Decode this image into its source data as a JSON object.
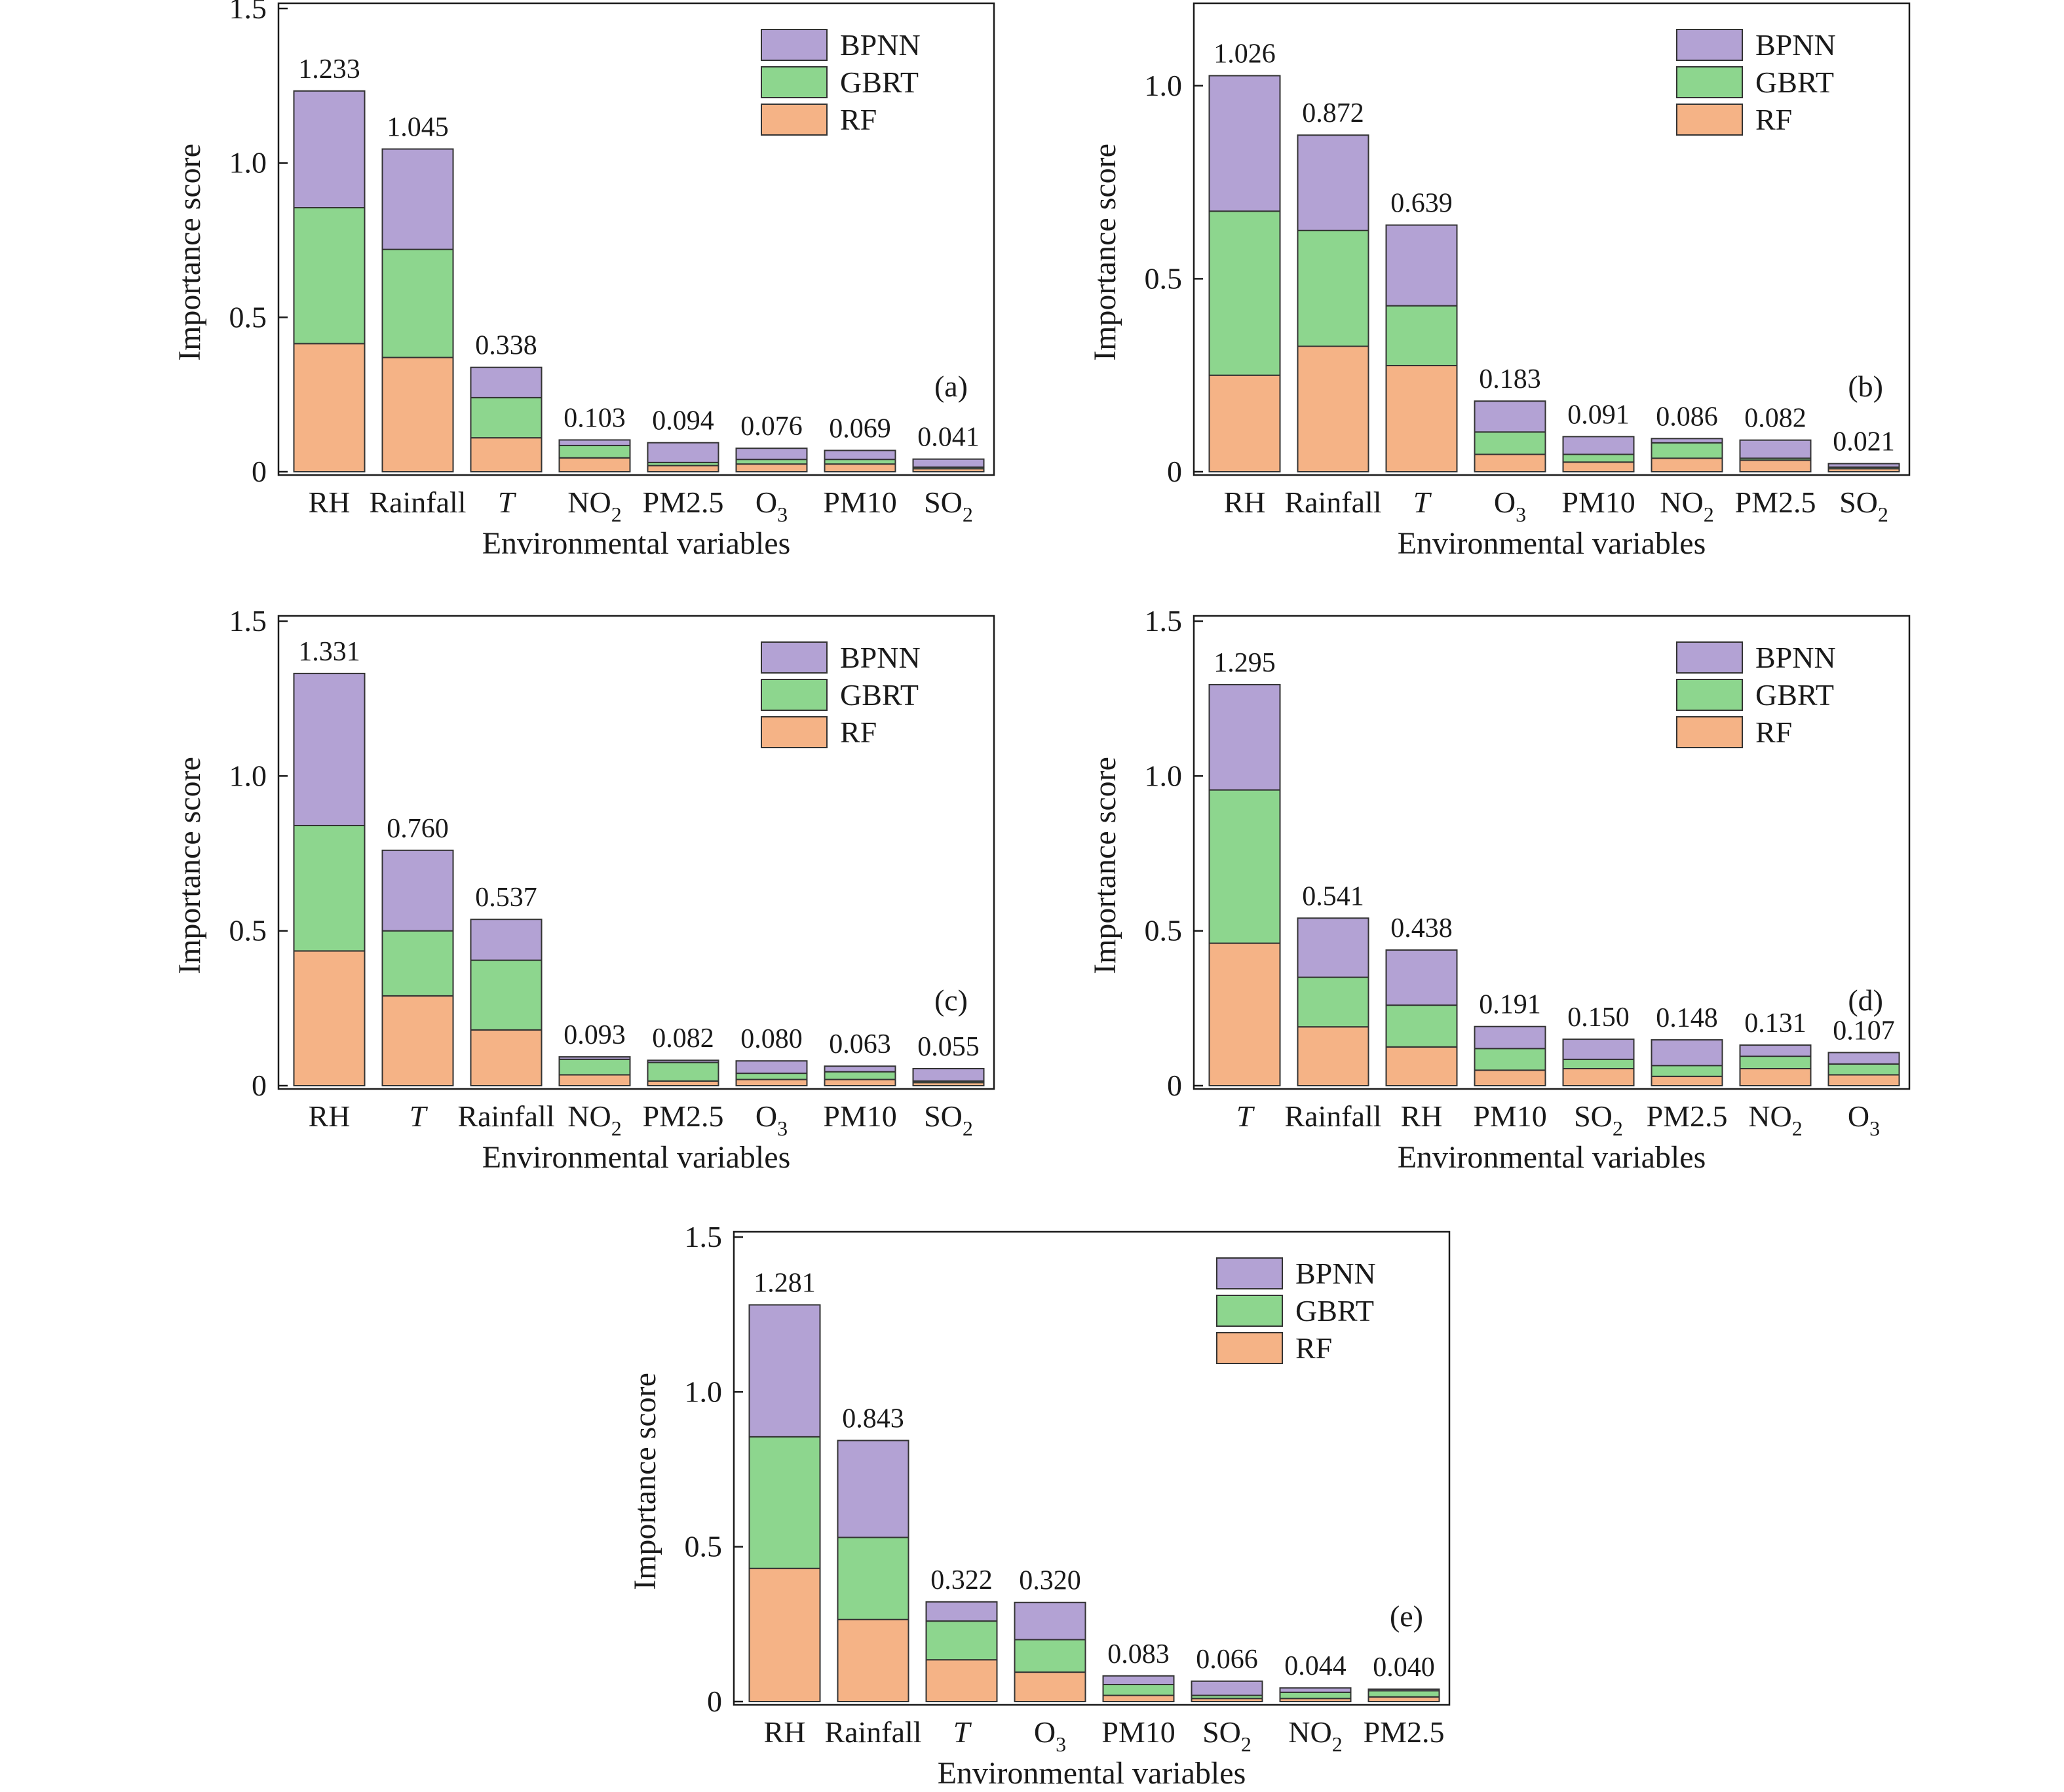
{
  "colors": {
    "RF": "#f5b386",
    "GBRT": "#8dd68e",
    "BPNN": "#b3a2d4"
  },
  "chart_data": [
    {
      "type": "bar",
      "stacked": true,
      "panel_label": "(a)",
      "xlabel": "Environmental variables",
      "ylabel": "Importance score",
      "ylim": [
        0,
        1.5
      ],
      "yticks": [
        "0",
        "0.5",
        "1.0",
        "1.5"
      ],
      "ytick_values": [
        0,
        0.5,
        1.0,
        1.5
      ],
      "legend": [
        "BPNN",
        "GBRT",
        "RF"
      ],
      "legend_position": "top-right",
      "categories": [
        {
          "base": "RH",
          "sub": ""
        },
        {
          "base": "Rainfall",
          "sub": ""
        },
        {
          "base": "T",
          "sub": "",
          "italic": true
        },
        {
          "base": "NO",
          "sub": "2"
        },
        {
          "base": "PM2.5",
          "sub": ""
        },
        {
          "base": "O",
          "sub": "3"
        },
        {
          "base": "PM10",
          "sub": ""
        },
        {
          "base": "SO",
          "sub": "2"
        }
      ],
      "totals": [
        "1.233",
        "1.045",
        "0.338",
        "0.103",
        "0.094",
        "0.076",
        "0.069",
        "0.041"
      ],
      "series": [
        {
          "name": "RF",
          "values": [
            0.415,
            0.37,
            0.11,
            0.045,
            0.02,
            0.025,
            0.025,
            0.01
          ]
        },
        {
          "name": "GBRT",
          "values": [
            0.44,
            0.35,
            0.13,
            0.04,
            0.01,
            0.015,
            0.015,
            0.005
          ]
        },
        {
          "name": "BPNN",
          "values": [
            0.378,
            0.325,
            0.098,
            0.018,
            0.064,
            0.036,
            0.029,
            0.026
          ]
        }
      ]
    },
    {
      "type": "bar",
      "stacked": true,
      "panel_label": "(b)",
      "xlabel": "Environmental variables",
      "ylabel": "Importance score",
      "ylim": [
        0,
        1.2
      ],
      "yticks": [
        "0",
        "0.5",
        "1.0"
      ],
      "ytick_values": [
        0,
        0.5,
        1.0
      ],
      "legend": [
        "BPNN",
        "GBRT",
        "RF"
      ],
      "legend_position": "top-right",
      "categories": [
        {
          "base": "RH",
          "sub": ""
        },
        {
          "base": "Rainfall",
          "sub": ""
        },
        {
          "base": "T",
          "sub": "",
          "italic": true
        },
        {
          "base": "O",
          "sub": "3"
        },
        {
          "base": "PM10",
          "sub": ""
        },
        {
          "base": "NO",
          "sub": "2"
        },
        {
          "base": "PM2.5",
          "sub": ""
        },
        {
          "base": "SO",
          "sub": "2"
        }
      ],
      "totals": [
        "1.026",
        "0.872",
        "0.639",
        "0.183",
        "0.091",
        "0.086",
        "0.082",
        "0.021"
      ],
      "series": [
        {
          "name": "RF",
          "values": [
            0.25,
            0.325,
            0.275,
            0.045,
            0.025,
            0.035,
            0.03,
            0.008
          ]
        },
        {
          "name": "GBRT",
          "values": [
            0.425,
            0.3,
            0.155,
            0.058,
            0.02,
            0.04,
            0.005,
            0.004
          ]
        },
        {
          "name": "BPNN",
          "values": [
            0.351,
            0.247,
            0.209,
            0.08,
            0.046,
            0.011,
            0.047,
            0.009
          ]
        }
      ]
    },
    {
      "type": "bar",
      "stacked": true,
      "panel_label": "(c)",
      "xlabel": "Environmental variables",
      "ylabel": "Importance score",
      "ylim": [
        0,
        1.5
      ],
      "yticks": [
        "0",
        "0.5",
        "1.0",
        "1.5"
      ],
      "ytick_values": [
        0,
        0.5,
        1.0,
        1.5
      ],
      "legend": [
        "BPNN",
        "GBRT",
        "RF"
      ],
      "legend_position": "top-right",
      "categories": [
        {
          "base": "RH",
          "sub": ""
        },
        {
          "base": "T",
          "sub": "",
          "italic": true
        },
        {
          "base": "Rainfall",
          "sub": ""
        },
        {
          "base": "NO",
          "sub": "2"
        },
        {
          "base": "PM2.5",
          "sub": ""
        },
        {
          "base": "O",
          "sub": "3"
        },
        {
          "base": "PM10",
          "sub": ""
        },
        {
          "base": "SO",
          "sub": "2"
        }
      ],
      "totals": [
        "1.331",
        "0.760",
        "0.537",
        "0.093",
        "0.082",
        "0.080",
        "0.063",
        "0.055"
      ],
      "series": [
        {
          "name": "RF",
          "values": [
            0.435,
            0.29,
            0.18,
            0.035,
            0.015,
            0.02,
            0.02,
            0.01
          ]
        },
        {
          "name": "GBRT",
          "values": [
            0.405,
            0.21,
            0.225,
            0.05,
            0.06,
            0.02,
            0.025,
            0.005
          ]
        },
        {
          "name": "BPNN",
          "values": [
            0.491,
            0.26,
            0.132,
            0.008,
            0.007,
            0.04,
            0.018,
            0.04
          ]
        }
      ]
    },
    {
      "type": "bar",
      "stacked": true,
      "panel_label": "(d)",
      "xlabel": "Environmental variables",
      "ylabel": "Importance score",
      "ylim": [
        0,
        1.5
      ],
      "yticks": [
        "0",
        "0.5",
        "1.0",
        "1.5"
      ],
      "ytick_values": [
        0,
        0.5,
        1.0,
        1.5
      ],
      "legend": [
        "BPNN",
        "GBRT",
        "RF"
      ],
      "legend_position": "top-right",
      "categories": [
        {
          "base": "T",
          "sub": "",
          "italic": true
        },
        {
          "base": "Rainfall",
          "sub": ""
        },
        {
          "base": "RH",
          "sub": ""
        },
        {
          "base": "PM10",
          "sub": ""
        },
        {
          "base": "SO",
          "sub": "2"
        },
        {
          "base": "PM2.5",
          "sub": ""
        },
        {
          "base": "NO",
          "sub": "2"
        },
        {
          "base": "O",
          "sub": "3"
        }
      ],
      "totals": [
        "1.295",
        "0.541",
        "0.438",
        "0.191",
        "0.150",
        "0.148",
        "0.131",
        "0.107"
      ],
      "series": [
        {
          "name": "RF",
          "values": [
            0.46,
            0.19,
            0.125,
            0.05,
            0.055,
            0.03,
            0.055,
            0.035
          ]
        },
        {
          "name": "GBRT",
          "values": [
            0.495,
            0.16,
            0.135,
            0.07,
            0.03,
            0.035,
            0.04,
            0.035
          ]
        },
        {
          "name": "BPNN",
          "values": [
            0.34,
            0.191,
            0.178,
            0.071,
            0.065,
            0.083,
            0.036,
            0.037
          ]
        }
      ]
    },
    {
      "type": "bar",
      "stacked": true,
      "panel_label": "(e)",
      "xlabel": "Environmental variables",
      "ylabel": "Importance score",
      "ylim": [
        0,
        1.5
      ],
      "yticks": [
        "0",
        "0.5",
        "1.0",
        "1.5"
      ],
      "ytick_values": [
        0,
        0.5,
        1.0,
        1.5
      ],
      "legend": [
        "BPNN",
        "GBRT",
        "RF"
      ],
      "legend_position": "top-right",
      "categories": [
        {
          "base": "RH",
          "sub": ""
        },
        {
          "base": "Rainfall",
          "sub": ""
        },
        {
          "base": "T",
          "sub": "",
          "italic": true
        },
        {
          "base": "O",
          "sub": "3"
        },
        {
          "base": "PM10",
          "sub": ""
        },
        {
          "base": "SO",
          "sub": "2"
        },
        {
          "base": "NO",
          "sub": "2"
        },
        {
          "base": "PM2.5",
          "sub": ""
        }
      ],
      "totals": [
        "1.281",
        "0.843",
        "0.322",
        "0.320",
        "0.083",
        "0.066",
        "0.044",
        "0.040"
      ],
      "series": [
        {
          "name": "RF",
          "values": [
            0.43,
            0.265,
            0.135,
            0.095,
            0.02,
            0.01,
            0.01,
            0.015
          ]
        },
        {
          "name": "GBRT",
          "values": [
            0.425,
            0.265,
            0.125,
            0.105,
            0.035,
            0.01,
            0.02,
            0.02
          ]
        },
        {
          "name": "BPNN",
          "values": [
            0.426,
            0.313,
            0.062,
            0.12,
            0.028,
            0.046,
            0.014,
            0.005
          ]
        }
      ]
    }
  ]
}
